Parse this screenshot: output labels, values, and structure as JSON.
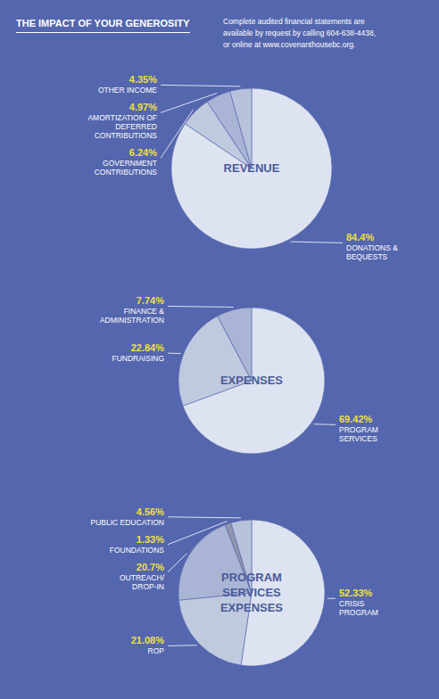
{
  "title": "THE IMPACT OF YOUR GENEROSITY",
  "subtitle": "Complete audited financial statements are\navailable by request by calling 604-638-4438,\nor online at www.covenanthousebc.org.",
  "chart_data": [
    {
      "type": "pie",
      "title": "REVENUE",
      "categories": [
        "DONATIONS &\nBEQUESTS",
        "GOVERNMENT\nCONTRIBUTIONS",
        "AMORTIZATION OF\nDEFERRED\nCONTRIBUTIONS",
        "OTHER INCOME"
      ],
      "values": [
        84.4,
        6.24,
        4.97,
        4.35
      ],
      "value_labels": [
        "84.4%",
        "6.24%",
        "4.97%",
        "4.35%"
      ],
      "colors": [
        "#dde3f0",
        "#c0cadf",
        "#aab4d4",
        "#b8c2dc"
      ],
      "data_labels": true
    },
    {
      "type": "pie",
      "title": "EXPENSES",
      "categories": [
        "PROGRAM\nSERVICES",
        "FUNDRAISING",
        "FINANCE &\nADMINISTRATION"
      ],
      "values": [
        69.42,
        22.84,
        7.74
      ],
      "value_labels": [
        "69.42%",
        "22.84%",
        "7.74%"
      ],
      "colors": [
        "#dde3f0",
        "#c0cadf",
        "#aab4d4"
      ],
      "data_labels": true
    },
    {
      "type": "pie",
      "title": "PROGRAM\nSERVICES\nEXPENSES",
      "categories": [
        "CRISIS\nPROGRAM",
        "ROP",
        "OUTREACH/\nDROP-IN",
        "FOUNDATIONS",
        "PUBLIC EDUCATION"
      ],
      "values": [
        52.33,
        21.08,
        20.7,
        1.33,
        4.56
      ],
      "value_labels": [
        "52.33%",
        "21.08%",
        "20.7%",
        "1.33%",
        "4.56%"
      ],
      "colors": [
        "#dde3f0",
        "#c0cadf",
        "#aab4d4",
        "#9096a8",
        "#b8c2dc"
      ],
      "data_labels": true
    }
  ]
}
